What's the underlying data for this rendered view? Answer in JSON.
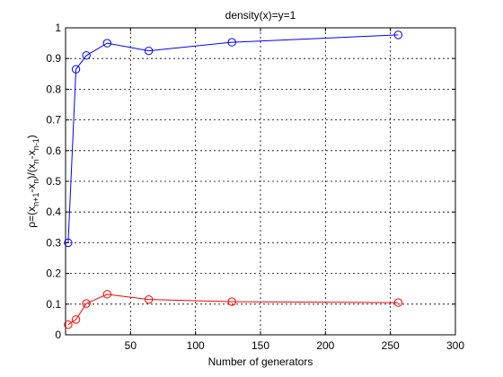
{
  "chart_data": {
    "type": "line",
    "title": "density(x)=y=1",
    "xlabel": "Number of generators",
    "ylabel_parts": [
      "ρ=(x",
      "n+1",
      "-x",
      "n",
      ")/(x",
      "n",
      "-x",
      "n-1",
      ")"
    ],
    "xlim": [
      0,
      300
    ],
    "ylim": [
      0,
      1
    ],
    "xticks": [
      50,
      100,
      150,
      200,
      250,
      300
    ],
    "yticks": [
      0,
      0.1,
      0.2,
      0.3,
      0.4,
      0.5,
      0.6,
      0.7,
      0.8,
      0.9,
      1
    ],
    "grid": true,
    "x": [
      2,
      8,
      16,
      32,
      64,
      128,
      256
    ],
    "series": [
      {
        "values": [
          0.3,
          0.865,
          0.91,
          0.95,
          0.925,
          0.953,
          0.977
        ],
        "color": "#0000ff",
        "marker": "circle"
      },
      {
        "values": [
          0.033,
          0.05,
          0.102,
          0.132,
          0.115,
          0.108,
          0.105
        ],
        "color": "#ff0000",
        "marker": "circle"
      }
    ]
  }
}
